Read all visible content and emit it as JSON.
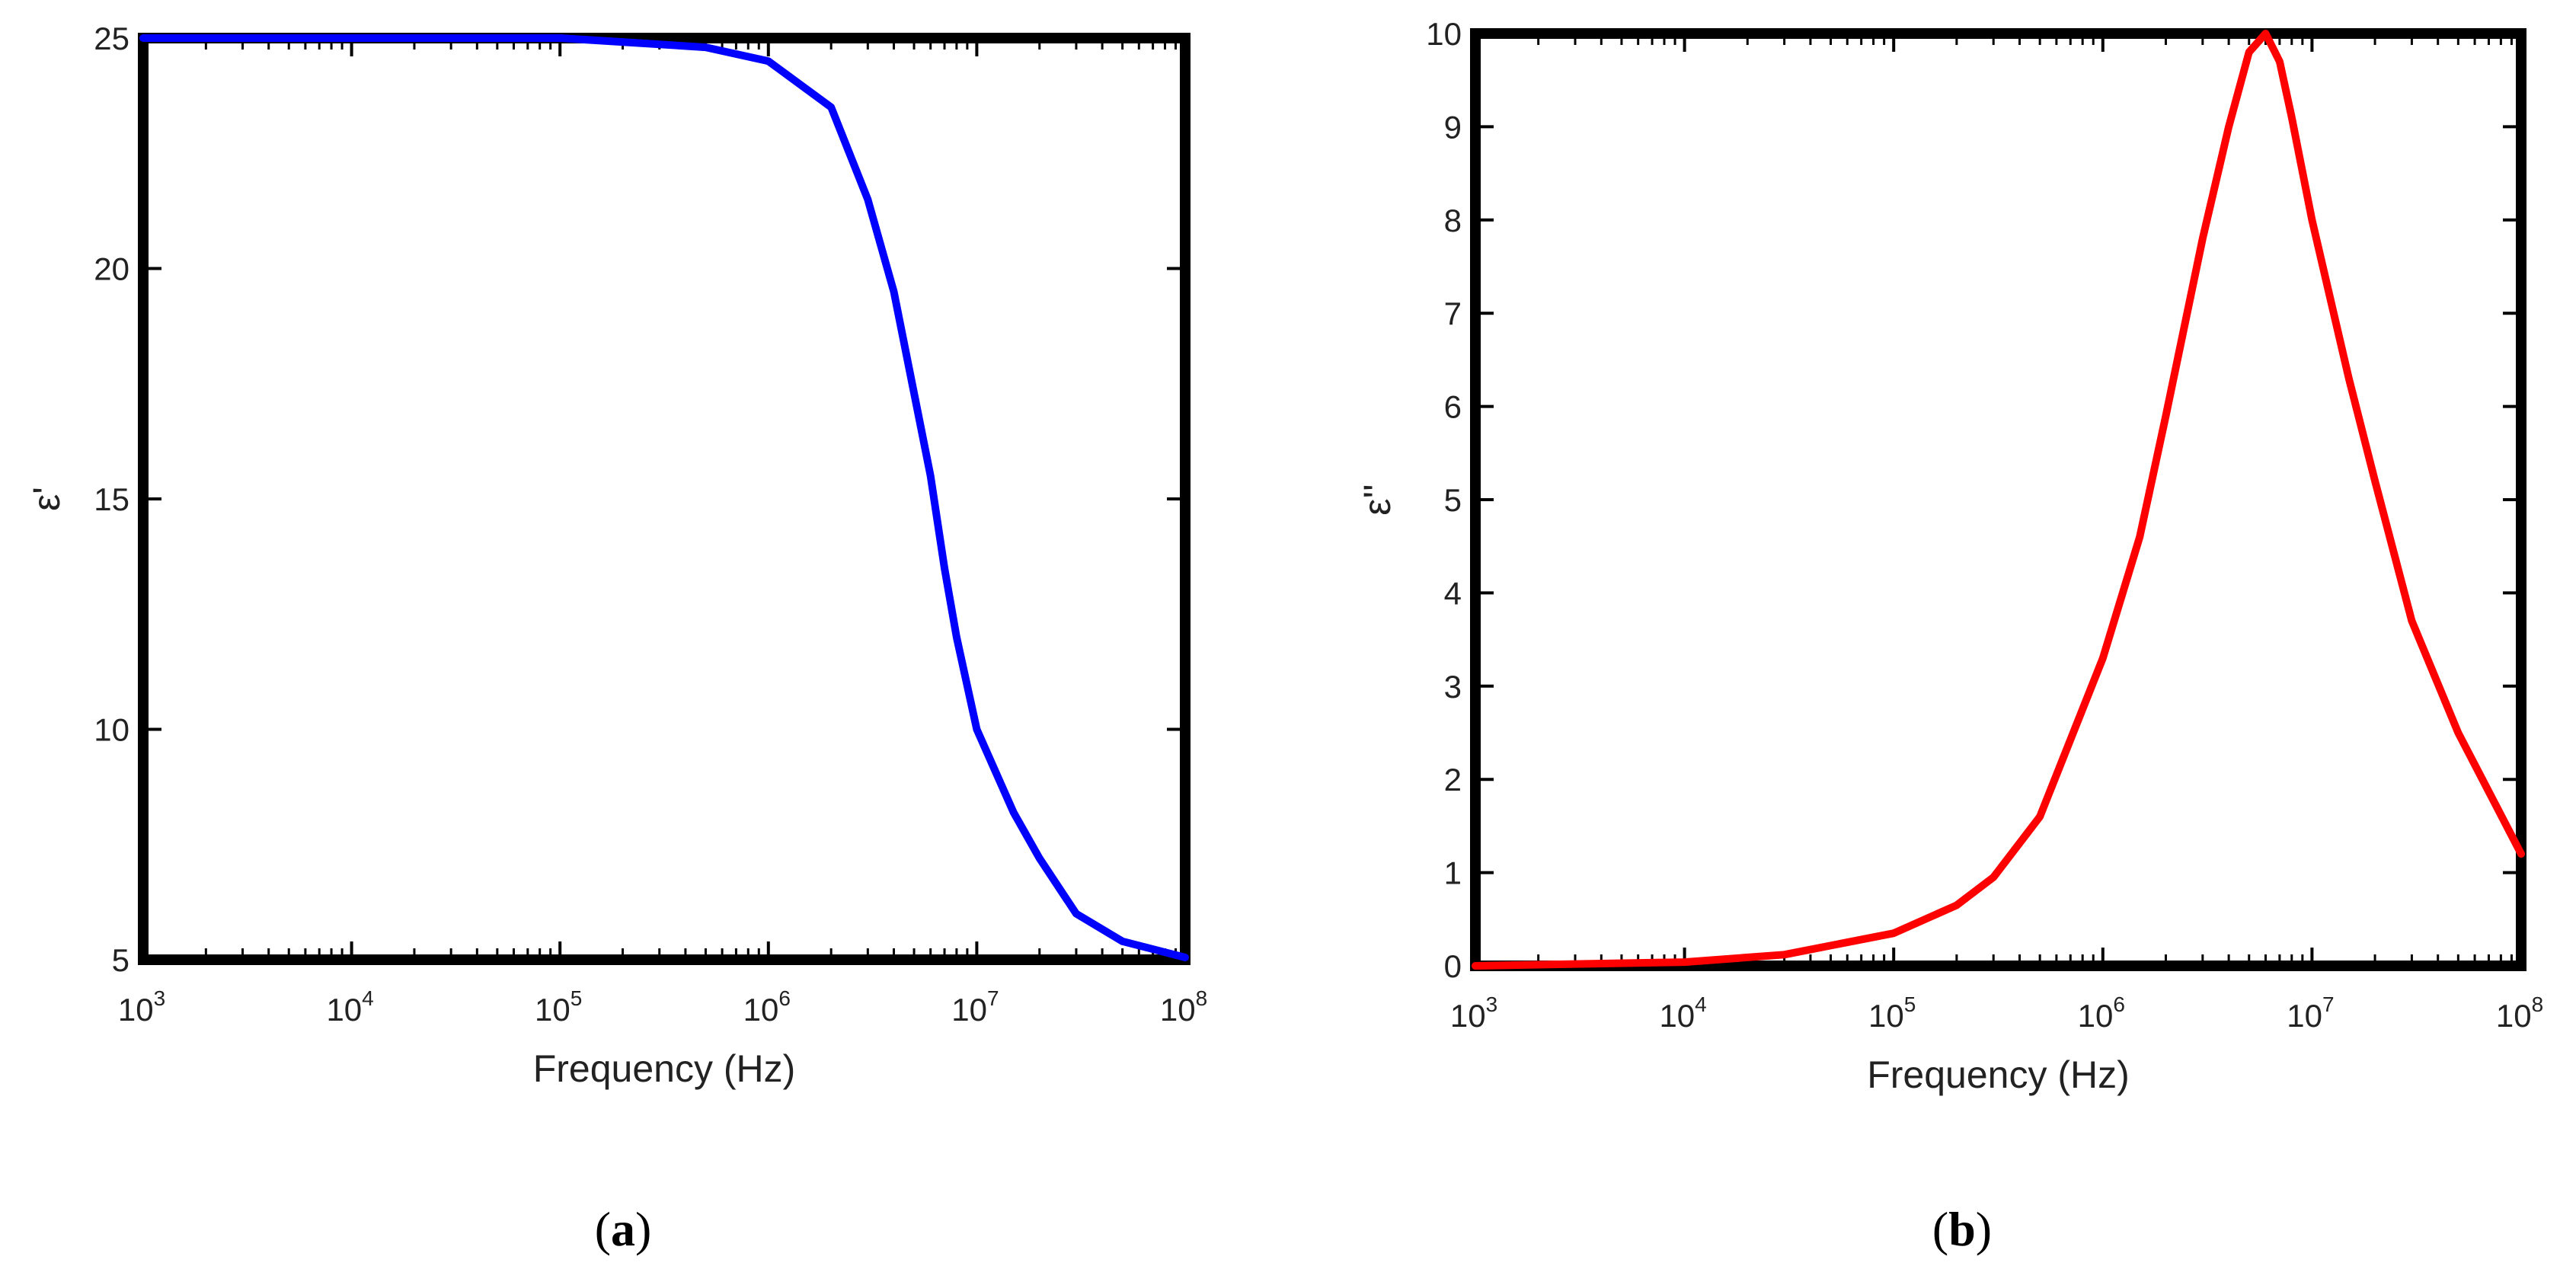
{
  "figure": {
    "panels": [
      {
        "label_open": "(",
        "label_letter": "a",
        "label_close": ")"
      },
      {
        "label_open": "(",
        "label_letter": "b",
        "label_close": ")"
      }
    ]
  },
  "chart_data": [
    {
      "type": "line",
      "title": "",
      "xlabel": "Frequency (Hz)",
      "ylabel": "ε'",
      "x_scale": "log",
      "xlim": [
        1000,
        100000000
      ],
      "ylim": [
        5,
        25
      ],
      "x_ticks": [
        {
          "base": "10",
          "exp": "3",
          "value": 1000
        },
        {
          "base": "10",
          "exp": "4",
          "value": 10000
        },
        {
          "base": "10",
          "exp": "5",
          "value": 100000
        },
        {
          "base": "10",
          "exp": "6",
          "value": 1000000
        },
        {
          "base": "10",
          "exp": "7",
          "value": 10000000
        },
        {
          "base": "10",
          "exp": "8",
          "value": 100000000
        }
      ],
      "y_ticks": [
        "5",
        "10",
        "15",
        "20",
        "25"
      ],
      "grid": false,
      "legend": "none",
      "color": "#0000ff",
      "series": [
        {
          "x": [
            1000,
            10000,
            100000,
            500000,
            1000000,
            2000000,
            3000000,
            4000000,
            5000000,
            6000000,
            7000000,
            8000000,
            10000000,
            15000000,
            20000000,
            30000000,
            50000000,
            100000000
          ],
          "y": [
            25.0,
            25.0,
            25.0,
            24.8,
            24.5,
            23.5,
            21.5,
            19.5,
            17.3,
            15.5,
            13.5,
            12.0,
            10.0,
            8.2,
            7.2,
            6.0,
            5.4,
            5.05
          ]
        }
      ]
    },
    {
      "type": "line",
      "title": "",
      "xlabel": "Frequency (Hz)",
      "ylabel": "ε''",
      "x_scale": "log",
      "xlim": [
        1000,
        100000000
      ],
      "ylim": [
        0,
        10
      ],
      "x_ticks": [
        {
          "base": "10",
          "exp": "3",
          "value": 1000
        },
        {
          "base": "10",
          "exp": "4",
          "value": 10000
        },
        {
          "base": "10",
          "exp": "5",
          "value": 100000
        },
        {
          "base": "10",
          "exp": "6",
          "value": 1000000
        },
        {
          "base": "10",
          "exp": "7",
          "value": 10000000
        },
        {
          "base": "10",
          "exp": "8",
          "value": 100000000
        }
      ],
      "y_ticks": [
        "0",
        "1",
        "2",
        "3",
        "4",
        "5",
        "6",
        "7",
        "8",
        "9",
        "10"
      ],
      "grid": false,
      "legend": "none",
      "color": "#ff0000",
      "series": [
        {
          "x": [
            1000,
            10000,
            30000,
            100000,
            200000,
            300000,
            500000,
            1000000,
            1500000,
            2000000,
            3000000,
            4000000,
            5000000,
            6000000,
            7000000,
            8000000,
            10000000,
            15000000,
            20000000,
            30000000,
            50000000,
            100000000
          ],
          "y": [
            0.0,
            0.04,
            0.12,
            0.35,
            0.65,
            0.95,
            1.6,
            3.3,
            4.6,
            5.9,
            7.8,
            9.0,
            9.8,
            10.0,
            9.7,
            9.1,
            8.0,
            6.3,
            5.2,
            3.7,
            2.5,
            1.2
          ]
        }
      ]
    }
  ]
}
